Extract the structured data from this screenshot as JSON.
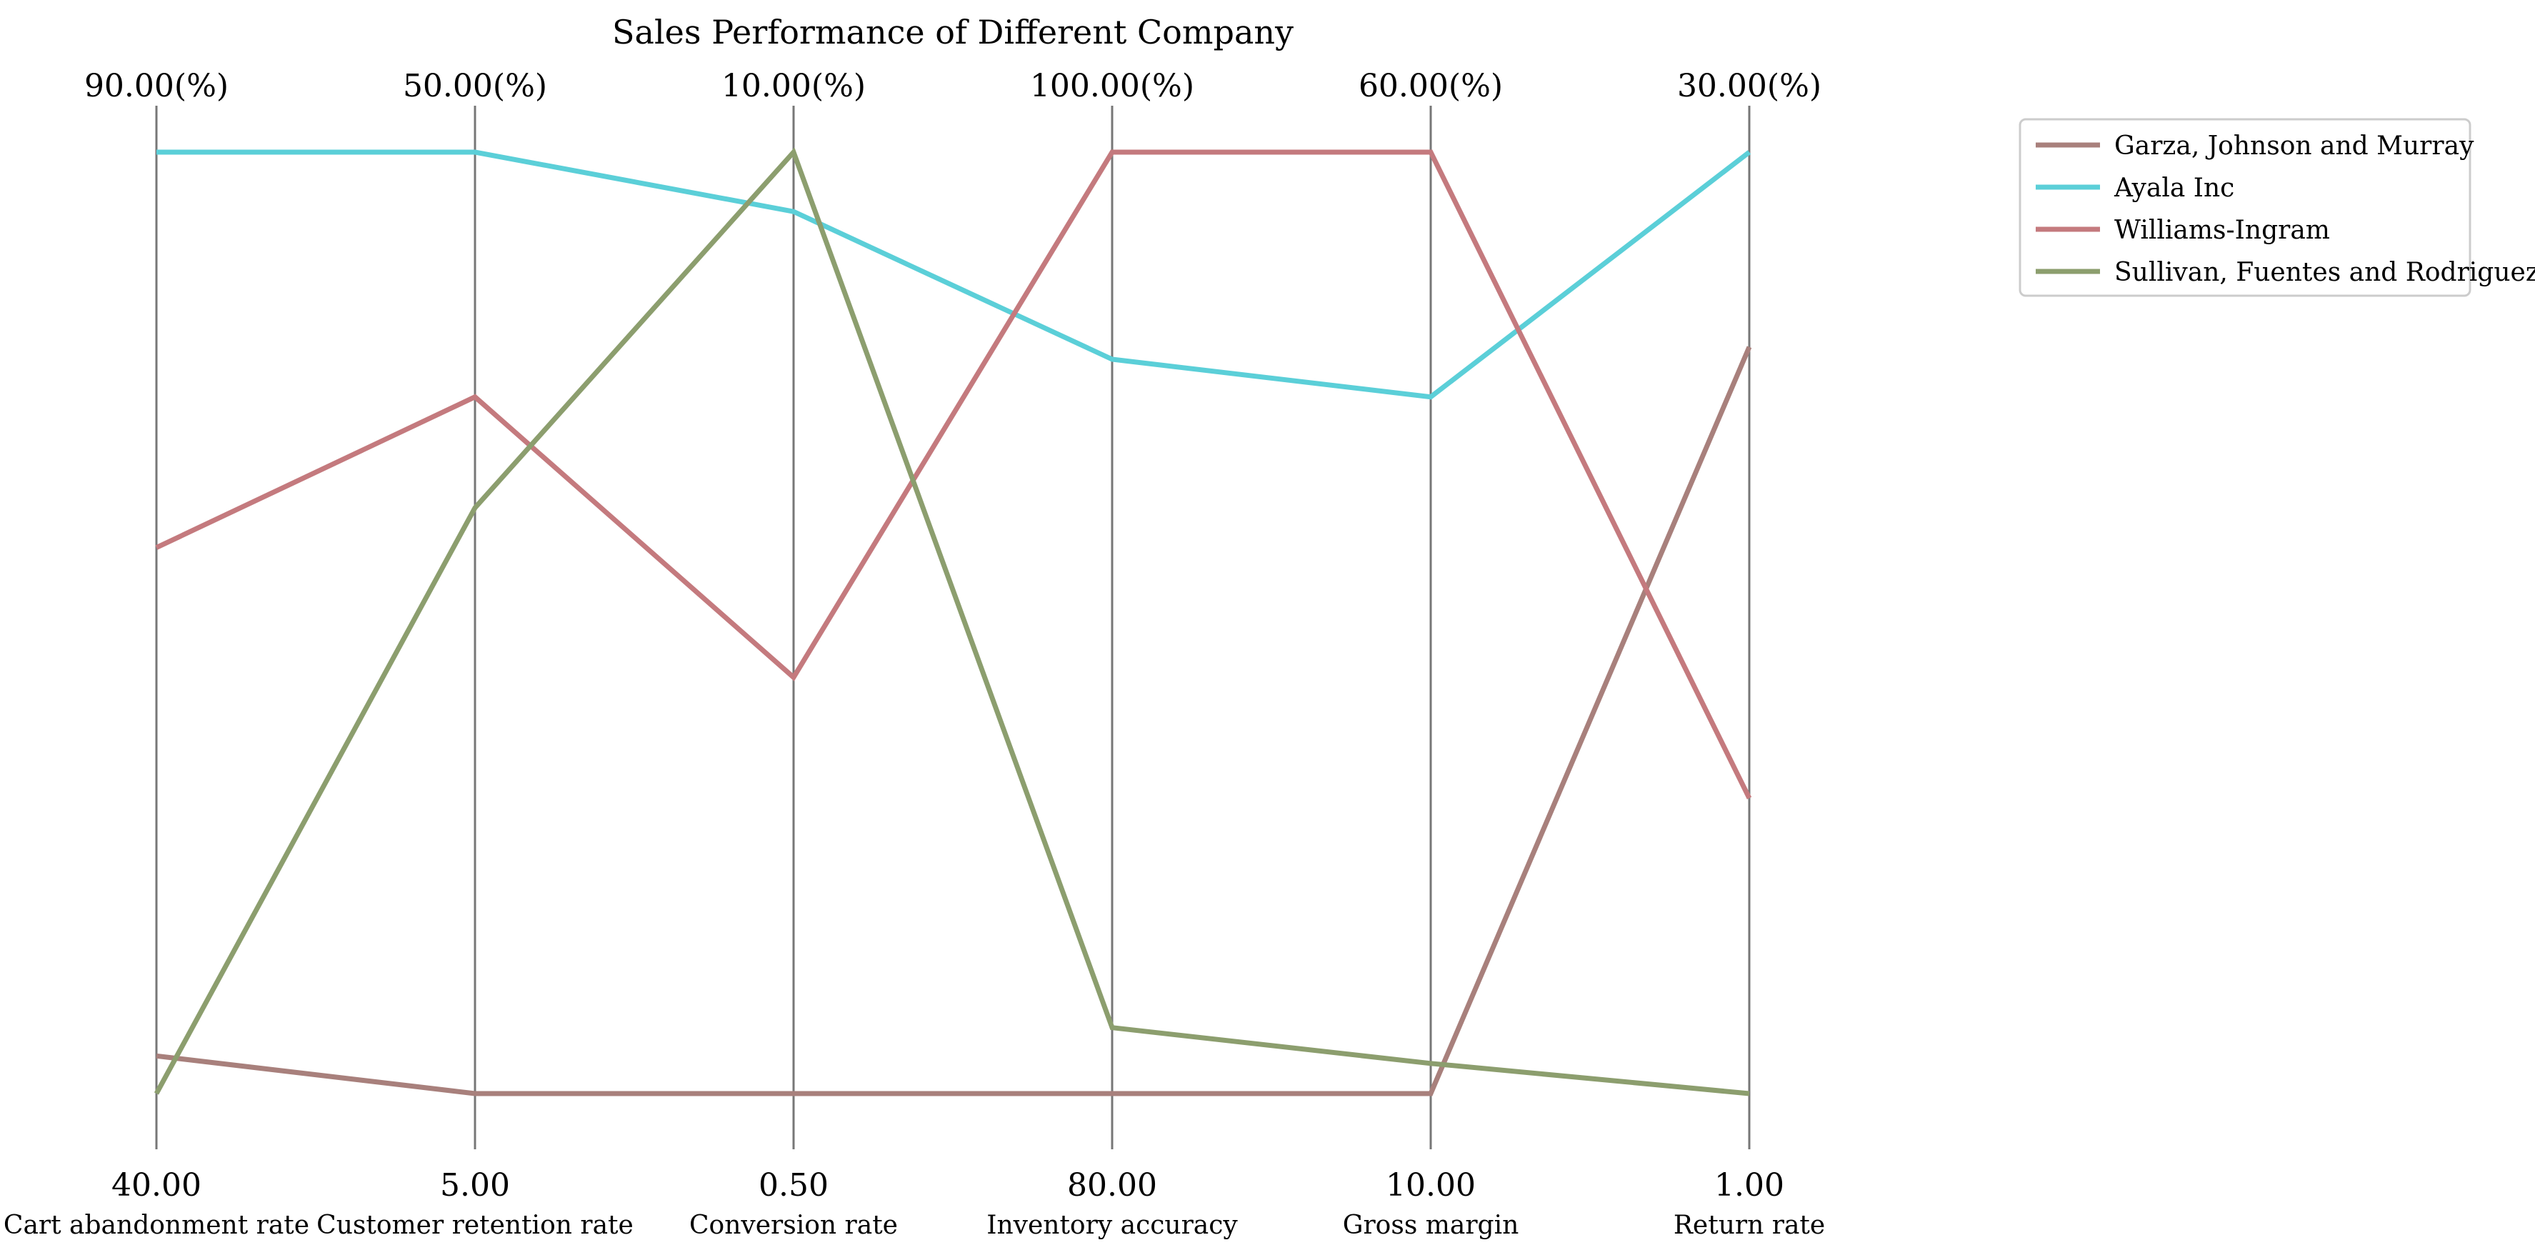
{
  "chart_data": {
    "type": "parallel-coordinates",
    "title": "Sales Performance of Different Company",
    "axes": [
      {
        "name": "Cart abandonment rate",
        "min": 40.0,
        "max": 90.0,
        "min_label": "40.00",
        "max_label": "90.00(%)"
      },
      {
        "name": "Customer retention rate",
        "min": 5.0,
        "max": 50.0,
        "min_label": "5.00",
        "max_label": "50.00(%)"
      },
      {
        "name": "Conversion rate",
        "min": 0.5,
        "max": 10.0,
        "min_label": "0.50",
        "max_label": "10.00(%)"
      },
      {
        "name": "Inventory accuracy",
        "min": 80.0,
        "max": 100.0,
        "min_label": "80.00",
        "max_label": "100.00(%)"
      },
      {
        "name": "Gross margin",
        "min": 10.0,
        "max": 60.0,
        "min_label": "10.00",
        "max_label": "60.00(%)"
      },
      {
        "name": "Return rate",
        "min": 1.0,
        "max": 30.0,
        "min_label": "1.00",
        "max_label": "30.00(%)"
      }
    ],
    "series": [
      {
        "name": "Garza, Johnson and Murray",
        "color": "#a8807c",
        "values": [
          42.0,
          5.0,
          0.5,
          80.0,
          10.0,
          24.0
        ]
      },
      {
        "name": "Ayala Inc",
        "color": "#5bcfd8",
        "values": [
          90.0,
          50.0,
          9.4,
          95.6,
          47.0,
          30.0
        ]
      },
      {
        "name": "Williams-Ingram",
        "color": "#c47a7e",
        "values": [
          69.0,
          38.3,
          4.7,
          100.0,
          60.0,
          10.1
        ]
      },
      {
        "name": "Sullivan, Fuentes and Rodriguez",
        "color": "#8c9e6e",
        "values": [
          40.0,
          33.0,
          10.0,
          81.4,
          11.6,
          1.0
        ]
      }
    ],
    "legend": "top-right",
    "grid": false
  }
}
